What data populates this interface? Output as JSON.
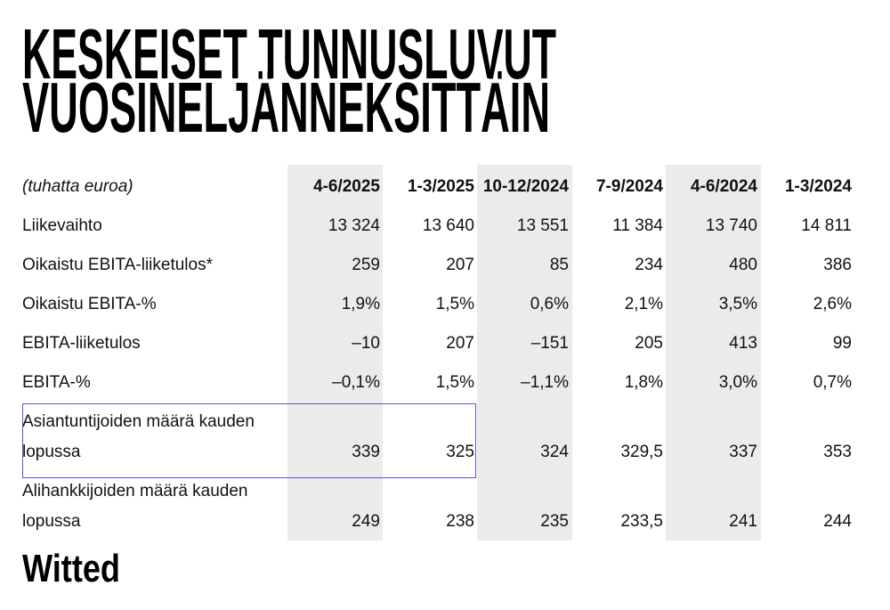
{
  "header": {
    "title_lines": [
      "KESKEISET TUNNUSLUVUT",
      "VUOSINELJÄNNEKSITTÄIN"
    ]
  },
  "table": {
    "unit": "(tuhatta euroa)",
    "columns": [
      "4-6/2025",
      "1-3/2025",
      "10-12/2024",
      "7-9/2024",
      "4-6/2024",
      "1-3/2024"
    ],
    "rows": [
      {
        "label": "Liikevaihto",
        "values": [
          "13 324",
          "13 640",
          "13 551",
          "11 384",
          "13 740",
          "14 811"
        ]
      },
      {
        "label": "Oikaistu EBITA-liiketulos*",
        "values": [
          "259",
          "207",
          "85",
          "234",
          "480",
          "386"
        ]
      },
      {
        "label": "Oikaistu EBITA-%",
        "values": [
          "1,9%",
          "1,5%",
          "0,6%",
          "2,1%",
          "3,5%",
          "2,6%"
        ]
      },
      {
        "label": "EBITA-liiketulos",
        "values": [
          "–10",
          "207",
          "–151",
          "205",
          "413",
          "99"
        ]
      },
      {
        "label": "EBITA-%",
        "values": [
          "–0,1%",
          "1,5%",
          "–1,1%",
          "1,8%",
          "3,0%",
          "0,7%"
        ]
      },
      {
        "label": "Asiantuntijoiden määrä kauden lopussa",
        "values": [
          "339",
          "325",
          "324",
          "329,5",
          "337",
          "353"
        ]
      },
      {
        "label": "Alihankkijoiden määrä kauden lopussa",
        "values": [
          "249",
          "238",
          "235",
          "233,5",
          "241",
          "244"
        ]
      }
    ]
  },
  "footer": {
    "logo": "Witted"
  }
}
